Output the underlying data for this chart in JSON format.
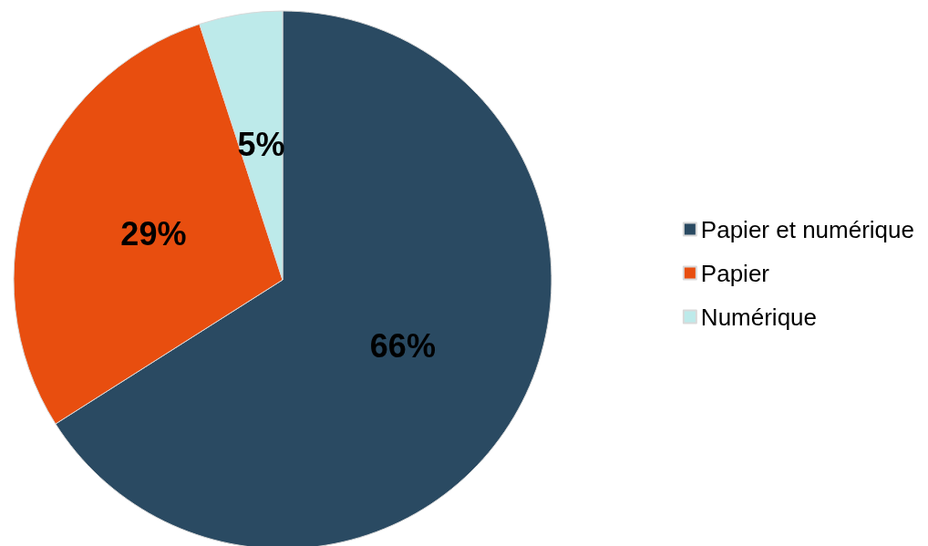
{
  "chart_data": {
    "type": "pie",
    "categories": [
      "Papier et numérique",
      "Papier",
      "Numérique"
    ],
    "values": [
      66,
      29,
      5
    ],
    "colors": [
      "#2a4a62",
      "#e84e0f",
      "#bdeaea"
    ],
    "value_labels": [
      "66%",
      "29%",
      "5%"
    ],
    "legend": "right"
  }
}
